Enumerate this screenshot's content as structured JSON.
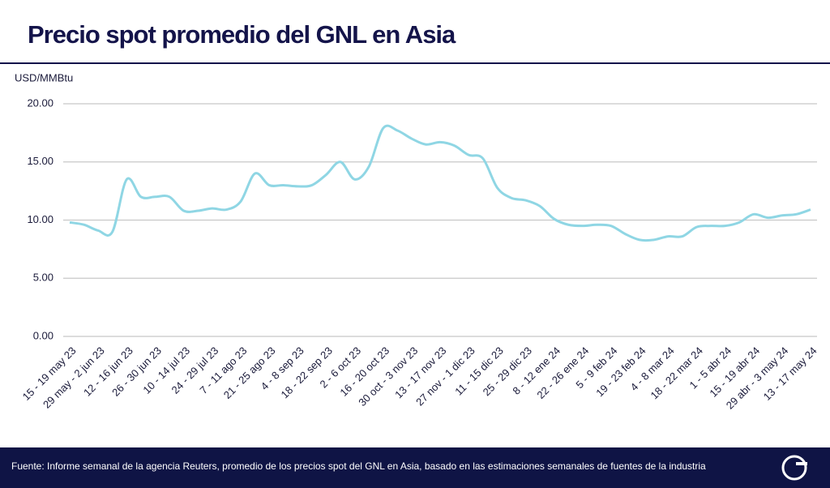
{
  "chart_data": {
    "type": "line",
    "title": "Precio spot promedio del GNL en Asia",
    "y_axis_label": "USD/MMBtu",
    "source": "Fuente: Informe semanal de la agencia Reuters, promedio de los precios spot del GNL en Asia, basado en las estimaciones semanales de fuentes de la industria",
    "categories": [
      "15 - 19 may 23",
      null,
      "29 may - 2 jun 23",
      null,
      "12 - 16 jun 23",
      null,
      "26 - 30 jun 23",
      null,
      "10 - 14 jul 23",
      null,
      "24 - 29 jul 23",
      null,
      "7 - 11 ago 23",
      null,
      "21 - 25 ago 23",
      null,
      "4 - 8 sep 23",
      null,
      "18 - 22 sep 23",
      null,
      "2 - 6 oct 23",
      null,
      "16 - 20 oct 23",
      null,
      "30 oct - 3 nov 23",
      null,
      "13 - 17 nov 23",
      null,
      "27 nov - 1 dic 23",
      null,
      "11 - 15 dic 23",
      null,
      "25 - 29 dic 23",
      null,
      "8 - 12 ene 24",
      null,
      "22 - 26 ene 24",
      null,
      "5 - 9 feb 24",
      null,
      "19 - 23 feb 24",
      null,
      "4 - 8 mar 24",
      null,
      "18 - 22 mar 24",
      null,
      "1 - 5 abr 24",
      null,
      "15 - 19 abr 24",
      null,
      "29 abr - 3 may 24",
      null,
      "13 - 17 may 24"
    ],
    "series": [
      {
        "name": "Precio spot",
        "color": "#8fd6e4",
        "values": [
          9.8,
          9.6,
          9.1,
          9.0,
          13.5,
          12.0,
          12.0,
          12.0,
          10.8,
          10.8,
          11.0,
          10.9,
          11.6,
          14.0,
          13.0,
          13.0,
          12.9,
          13.0,
          13.9,
          15.0,
          13.5,
          14.6,
          17.9,
          17.7,
          17.0,
          16.5,
          16.7,
          16.4,
          15.6,
          15.3,
          12.8,
          11.9,
          11.7,
          11.2,
          10.1,
          9.6,
          9.5,
          9.6,
          9.5,
          8.8,
          8.3,
          8.3,
          8.6,
          8.6,
          9.4,
          9.5,
          9.5,
          9.8,
          10.5,
          10.2,
          10.4,
          10.5,
          10.9
        ]
      }
    ],
    "ylim": [
      0,
      20
    ],
    "yticks": [
      {
        "value": 0,
        "label": "0.00"
      },
      {
        "value": 5,
        "label": "5.00"
      },
      {
        "value": 10,
        "label": "10.00"
      },
      {
        "value": 15,
        "label": "15.00"
      },
      {
        "value": 20,
        "label": "20.00"
      }
    ],
    "grid": true
  }
}
